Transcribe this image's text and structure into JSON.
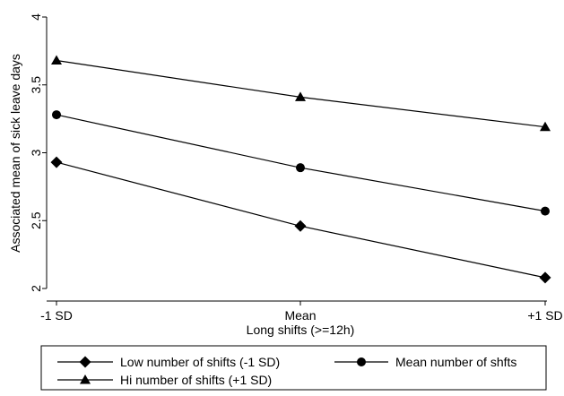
{
  "chart_data": {
    "type": "line",
    "categories": [
      "-1 SD",
      "Mean",
      "+1 SD"
    ],
    "xlabel": "Long shifts (>=12h)",
    "ylabel": "Associated mean of sick leave days",
    "ylim": [
      2,
      4
    ],
    "yticks": [
      2,
      2.5,
      3,
      3.5,
      4
    ],
    "ytick_labels": [
      "2",
      "2.5",
      "3",
      "3.5",
      "4"
    ],
    "grid": false,
    "legend_position": "bottom",
    "series": [
      {
        "name": "Low number of shifts (-1 SD)",
        "marker": "diamond",
        "values": [
          2.93,
          2.46,
          2.08
        ]
      },
      {
        "name": "Mean number of shfts",
        "marker": "circle",
        "values": [
          3.28,
          2.89,
          2.57
        ]
      },
      {
        "name": "Hi number of shifts (+1 SD)",
        "marker": "triangle",
        "values": [
          3.68,
          3.41,
          3.19
        ]
      }
    ],
    "line_color": "#000000"
  }
}
